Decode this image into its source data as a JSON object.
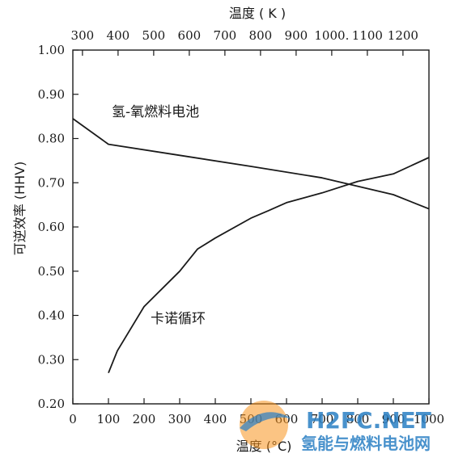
{
  "chart_data": {
    "type": "line",
    "title": "",
    "top_axis": {
      "label": "温度 ( K )",
      "ticks": [
        300,
        400,
        500,
        600,
        700,
        800,
        900,
        1000,
        1100,
        1200
      ],
      "tick_labels": [
        "300",
        "400",
        "500",
        "600",
        "700",
        "800",
        "900",
        "1000.",
        "1100",
        "1200"
      ],
      "xlim": [
        273,
        1273
      ]
    },
    "xlabel": "温度 (°C)",
    "ylabel": "可逆效率 (HHV)",
    "xlim": [
      0,
      1000
    ],
    "ylim": [
      0.2,
      1.0
    ],
    "x_ticks": [
      0,
      100,
      200,
      300,
      400,
      500,
      600,
      700,
      800,
      900,
      1000
    ],
    "y_ticks": [
      0.2,
      0.3,
      0.4,
      0.5,
      0.6,
      0.7,
      0.8,
      0.9,
      1.0
    ],
    "y_tick_labels": [
      "0.20",
      "0.30",
      "0.40",
      "0.50",
      "0.60",
      "0.70",
      "0.80",
      "0.90",
      "1.00"
    ],
    "grid": false,
    "series": [
      {
        "name": "氢-氧燃料电池",
        "color": "#1a1a1a",
        "x": [
          0,
          100,
          300,
          500,
          700,
          900,
          1000
        ],
        "y": [
          0.845,
          0.787,
          0.762,
          0.737,
          0.711,
          0.673,
          0.641
        ]
      },
      {
        "name": "卡诺循环",
        "color": "#1a1a1a",
        "x": [
          100,
          125,
          200,
          300,
          350,
          400,
          500,
          550,
          600,
          700,
          800,
          900,
          1000
        ],
        "y": [
          0.27,
          0.32,
          0.42,
          0.5,
          0.55,
          0.575,
          0.62,
          0.637,
          0.655,
          0.677,
          0.703,
          0.72,
          0.757
        ]
      }
    ]
  },
  "watermark": {
    "logo_text": "H2FC.NET",
    "sub_text": "氢能与燃料电池网",
    "colors": [
      "#f7941d",
      "#2a7fc4"
    ]
  }
}
